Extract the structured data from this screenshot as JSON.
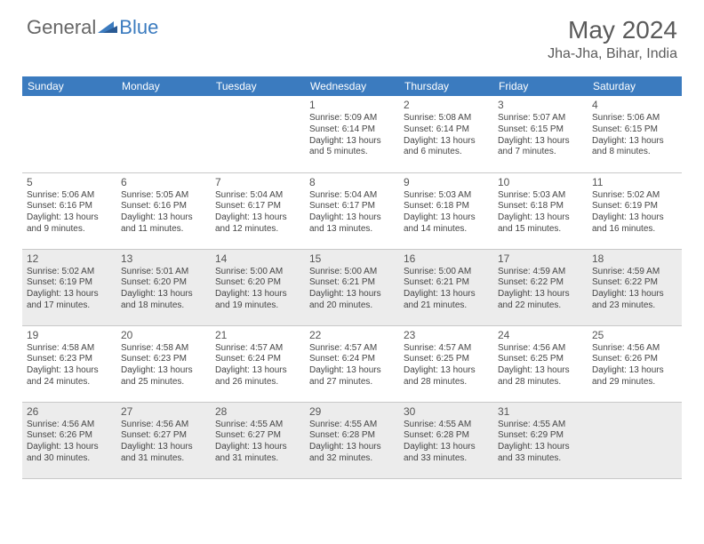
{
  "brand": {
    "part1": "General",
    "part2": "Blue"
  },
  "title": "May 2024",
  "location": "Jha-Jha, Bihar, India",
  "colors": {
    "header_bg": "#3b7bbf",
    "header_text": "#ffffff",
    "shaded_bg": "#ececec",
    "border": "#c8c8c8",
    "text": "#444444",
    "title_text": "#5a5a5a"
  },
  "day_headers": [
    "Sunday",
    "Monday",
    "Tuesday",
    "Wednesday",
    "Thursday",
    "Friday",
    "Saturday"
  ],
  "weeks": [
    [
      {
        "num": "",
        "sunrise": "",
        "sunset": "",
        "daylight": "",
        "shaded": false
      },
      {
        "num": "",
        "sunrise": "",
        "sunset": "",
        "daylight": "",
        "shaded": false
      },
      {
        "num": "",
        "sunrise": "",
        "sunset": "",
        "daylight": "",
        "shaded": false
      },
      {
        "num": "1",
        "sunrise": "Sunrise: 5:09 AM",
        "sunset": "Sunset: 6:14 PM",
        "daylight": "Daylight: 13 hours and 5 minutes.",
        "shaded": false
      },
      {
        "num": "2",
        "sunrise": "Sunrise: 5:08 AM",
        "sunset": "Sunset: 6:14 PM",
        "daylight": "Daylight: 13 hours and 6 minutes.",
        "shaded": false
      },
      {
        "num": "3",
        "sunrise": "Sunrise: 5:07 AM",
        "sunset": "Sunset: 6:15 PM",
        "daylight": "Daylight: 13 hours and 7 minutes.",
        "shaded": false
      },
      {
        "num": "4",
        "sunrise": "Sunrise: 5:06 AM",
        "sunset": "Sunset: 6:15 PM",
        "daylight": "Daylight: 13 hours and 8 minutes.",
        "shaded": false
      }
    ],
    [
      {
        "num": "5",
        "sunrise": "Sunrise: 5:06 AM",
        "sunset": "Sunset: 6:16 PM",
        "daylight": "Daylight: 13 hours and 9 minutes.",
        "shaded": false
      },
      {
        "num": "6",
        "sunrise": "Sunrise: 5:05 AM",
        "sunset": "Sunset: 6:16 PM",
        "daylight": "Daylight: 13 hours and 11 minutes.",
        "shaded": false
      },
      {
        "num": "7",
        "sunrise": "Sunrise: 5:04 AM",
        "sunset": "Sunset: 6:17 PM",
        "daylight": "Daylight: 13 hours and 12 minutes.",
        "shaded": false
      },
      {
        "num": "8",
        "sunrise": "Sunrise: 5:04 AM",
        "sunset": "Sunset: 6:17 PM",
        "daylight": "Daylight: 13 hours and 13 minutes.",
        "shaded": false
      },
      {
        "num": "9",
        "sunrise": "Sunrise: 5:03 AM",
        "sunset": "Sunset: 6:18 PM",
        "daylight": "Daylight: 13 hours and 14 minutes.",
        "shaded": false
      },
      {
        "num": "10",
        "sunrise": "Sunrise: 5:03 AM",
        "sunset": "Sunset: 6:18 PM",
        "daylight": "Daylight: 13 hours and 15 minutes.",
        "shaded": false
      },
      {
        "num": "11",
        "sunrise": "Sunrise: 5:02 AM",
        "sunset": "Sunset: 6:19 PM",
        "daylight": "Daylight: 13 hours and 16 minutes.",
        "shaded": false
      }
    ],
    [
      {
        "num": "12",
        "sunrise": "Sunrise: 5:02 AM",
        "sunset": "Sunset: 6:19 PM",
        "daylight": "Daylight: 13 hours and 17 minutes.",
        "shaded": true
      },
      {
        "num": "13",
        "sunrise": "Sunrise: 5:01 AM",
        "sunset": "Sunset: 6:20 PM",
        "daylight": "Daylight: 13 hours and 18 minutes.",
        "shaded": true
      },
      {
        "num": "14",
        "sunrise": "Sunrise: 5:00 AM",
        "sunset": "Sunset: 6:20 PM",
        "daylight": "Daylight: 13 hours and 19 minutes.",
        "shaded": true
      },
      {
        "num": "15",
        "sunrise": "Sunrise: 5:00 AM",
        "sunset": "Sunset: 6:21 PM",
        "daylight": "Daylight: 13 hours and 20 minutes.",
        "shaded": true
      },
      {
        "num": "16",
        "sunrise": "Sunrise: 5:00 AM",
        "sunset": "Sunset: 6:21 PM",
        "daylight": "Daylight: 13 hours and 21 minutes.",
        "shaded": true
      },
      {
        "num": "17",
        "sunrise": "Sunrise: 4:59 AM",
        "sunset": "Sunset: 6:22 PM",
        "daylight": "Daylight: 13 hours and 22 minutes.",
        "shaded": true
      },
      {
        "num": "18",
        "sunrise": "Sunrise: 4:59 AM",
        "sunset": "Sunset: 6:22 PM",
        "daylight": "Daylight: 13 hours and 23 minutes.",
        "shaded": true
      }
    ],
    [
      {
        "num": "19",
        "sunrise": "Sunrise: 4:58 AM",
        "sunset": "Sunset: 6:23 PM",
        "daylight": "Daylight: 13 hours and 24 minutes.",
        "shaded": false
      },
      {
        "num": "20",
        "sunrise": "Sunrise: 4:58 AM",
        "sunset": "Sunset: 6:23 PM",
        "daylight": "Daylight: 13 hours and 25 minutes.",
        "shaded": false
      },
      {
        "num": "21",
        "sunrise": "Sunrise: 4:57 AM",
        "sunset": "Sunset: 6:24 PM",
        "daylight": "Daylight: 13 hours and 26 minutes.",
        "shaded": false
      },
      {
        "num": "22",
        "sunrise": "Sunrise: 4:57 AM",
        "sunset": "Sunset: 6:24 PM",
        "daylight": "Daylight: 13 hours and 27 minutes.",
        "shaded": false
      },
      {
        "num": "23",
        "sunrise": "Sunrise: 4:57 AM",
        "sunset": "Sunset: 6:25 PM",
        "daylight": "Daylight: 13 hours and 28 minutes.",
        "shaded": false
      },
      {
        "num": "24",
        "sunrise": "Sunrise: 4:56 AM",
        "sunset": "Sunset: 6:25 PM",
        "daylight": "Daylight: 13 hours and 28 minutes.",
        "shaded": false
      },
      {
        "num": "25",
        "sunrise": "Sunrise: 4:56 AM",
        "sunset": "Sunset: 6:26 PM",
        "daylight": "Daylight: 13 hours and 29 minutes.",
        "shaded": false
      }
    ],
    [
      {
        "num": "26",
        "sunrise": "Sunrise: 4:56 AM",
        "sunset": "Sunset: 6:26 PM",
        "daylight": "Daylight: 13 hours and 30 minutes.",
        "shaded": true
      },
      {
        "num": "27",
        "sunrise": "Sunrise: 4:56 AM",
        "sunset": "Sunset: 6:27 PM",
        "daylight": "Daylight: 13 hours and 31 minutes.",
        "shaded": true
      },
      {
        "num": "28",
        "sunrise": "Sunrise: 4:55 AM",
        "sunset": "Sunset: 6:27 PM",
        "daylight": "Daylight: 13 hours and 31 minutes.",
        "shaded": true
      },
      {
        "num": "29",
        "sunrise": "Sunrise: 4:55 AM",
        "sunset": "Sunset: 6:28 PM",
        "daylight": "Daylight: 13 hours and 32 minutes.",
        "shaded": true
      },
      {
        "num": "30",
        "sunrise": "Sunrise: 4:55 AM",
        "sunset": "Sunset: 6:28 PM",
        "daylight": "Daylight: 13 hours and 33 minutes.",
        "shaded": true
      },
      {
        "num": "31",
        "sunrise": "Sunrise: 4:55 AM",
        "sunset": "Sunset: 6:29 PM",
        "daylight": "Daylight: 13 hours and 33 minutes.",
        "shaded": true
      },
      {
        "num": "",
        "sunrise": "",
        "sunset": "",
        "daylight": "",
        "shaded": true
      }
    ]
  ]
}
